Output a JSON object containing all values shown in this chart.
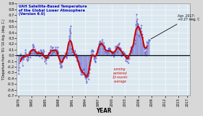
{
  "title_line1": "UAH Satellite-Based Temperature",
  "title_line2": "of the Global Lower Atmosphere",
  "title_line3": "(Version 6.0)",
  "xlabel": "YEAR",
  "ylabel": "T Departure from '81-'10 Avg. (deg. C.)",
  "ylim": [
    -0.7,
    0.9
  ],
  "yticks": [
    -0.7,
    -0.6,
    -0.5,
    -0.4,
    -0.3,
    -0.2,
    -0.1,
    0.0,
    0.1,
    0.2,
    0.3,
    0.4,
    0.5,
    0.6,
    0.7,
    0.8,
    0.9
  ],
  "xlim_start": 1978.6,
  "xlim_end": 2017.7,
  "xtick_years": [
    1979,
    1982,
    1985,
    1988,
    1991,
    1994,
    1997,
    2000,
    2003,
    2006,
    2009,
    2012,
    2015,
    2017
  ],
  "monthly_color": "#6666cc",
  "smooth_color": "#cc0000",
  "zero_line_color": "#000000",
  "title_color": "#0000bb",
  "annotation_text": "Apr. 2017:\n+0.27 deg. C",
  "legend_text": "running\ncentered\n13-month\naverage",
  "legend_color": "#cc0000",
  "bg_color": "#d8d8d8",
  "plot_bg_color": "#dce8f0",
  "grid_color": "#ffffff",
  "monthly_data": [
    -0.259,
    -0.317,
    -0.211,
    -0.129,
    -0.054,
    -0.011,
    0.003,
    0.021,
    -0.044,
    -0.073,
    -0.058,
    -0.014,
    -0.176,
    -0.071,
    -0.046,
    0.004,
    0.001,
    -0.017,
    -0.019,
    0.099,
    0.053,
    0.032,
    -0.002,
    -0.073,
    -0.095,
    -0.025,
    -0.03,
    -0.064,
    0.046,
    0.03,
    0.024,
    0.078,
    0.034,
    -0.029,
    0.082,
    0.091,
    0.033,
    0.095,
    0.081,
    0.19,
    0.177,
    0.161,
    0.148,
    0.052,
    0.079,
    0.111,
    0.037,
    0.005,
    0.075,
    0.029,
    0.046,
    0.006,
    0.026,
    0.057,
    0.068,
    0.072,
    0.007,
    -0.01,
    0.029,
    -0.012,
    0.094,
    0.084,
    0.066,
    0.064,
    -0.044,
    0.001,
    0.009,
    0.045,
    0.099,
    0.08,
    -0.023,
    -0.1,
    -0.031,
    -0.055,
    -0.139,
    -0.086,
    -0.033,
    -0.05,
    -0.035,
    -0.027,
    -0.046,
    -0.028,
    -0.022,
    0.047,
    0.044,
    0.052,
    0.099,
    0.155,
    0.095,
    0.026,
    -0.003,
    0.052,
    0.134,
    0.151,
    0.063,
    0.083,
    0.096,
    0.06,
    0.085,
    0.098,
    0.145,
    0.114,
    0.039,
    0.05,
    0.046,
    0.096,
    0.146,
    0.076,
    0.048,
    -0.001,
    -0.008,
    -0.048,
    -0.14,
    -0.201,
    -0.144,
    -0.208,
    -0.175,
    -0.185,
    -0.12,
    -0.093,
    -0.105,
    -0.045,
    -0.06,
    -0.04,
    -0.017,
    -0.004,
    0.041,
    -0.012,
    -0.022,
    -0.011,
    -0.021,
    -0.046,
    0.011,
    0.032,
    0.047,
    0.108,
    0.195,
    0.285,
    0.335,
    0.434,
    0.471,
    0.51,
    0.39,
    0.215,
    0.122,
    0.105,
    0.058,
    0.1,
    0.019,
    0.019,
    0.028,
    0.019,
    0.059,
    0.089,
    0.015,
    -0.02,
    0.031,
    0.015,
    -0.037,
    -0.094,
    -0.037,
    -0.014,
    -0.101,
    -0.169,
    -0.135,
    -0.142,
    -0.211,
    -0.218,
    -0.254,
    -0.282,
    -0.334,
    -0.296,
    -0.29,
    -0.329,
    -0.265,
    -0.249,
    -0.252,
    -0.238,
    -0.295,
    -0.335,
    -0.373,
    -0.37,
    -0.334,
    -0.405,
    -0.472,
    -0.448,
    -0.372,
    -0.313,
    -0.341,
    -0.418,
    -0.358,
    -0.309,
    -0.245,
    -0.23,
    -0.166,
    -0.09,
    -0.027,
    0.014,
    0.07,
    0.092,
    0.082,
    0.09,
    0.07,
    0.002,
    -0.025,
    -0.057,
    -0.041,
    -0.095,
    -0.114,
    -0.102,
    -0.039,
    0.021,
    0.039,
    0.062,
    0.076,
    0.064,
    0.088,
    0.12,
    0.193,
    0.217,
    0.237,
    0.25,
    0.178,
    0.208,
    0.188,
    0.21,
    0.24,
    0.274,
    0.183,
    0.178,
    0.215,
    0.122,
    0.17,
    0.12,
    0.145,
    0.08,
    0.1,
    0.059,
    0.048,
    0.072,
    0.012,
    0.048,
    0.072,
    0.098,
    0.119,
    0.13,
    0.085,
    0.12,
    0.106,
    0.09,
    0.078,
    0.003,
    0.024,
    0.059,
    0.069,
    0.049,
    0.047,
    0.001,
    -0.02,
    0.025,
    0.04,
    0.02,
    0.067,
    0.155,
    0.133,
    0.102,
    0.173,
    0.159,
    0.068,
    0.13,
    0.193,
    0.117,
    0.191,
    0.108,
    0.213,
    0.134,
    0.12,
    0.084,
    0.042,
    -0.01,
    0.018,
    0.018,
    0.08,
    0.057,
    0.017,
    0.018,
    0.046,
    0.04,
    0.028,
    0.007,
    -0.09,
    -0.051,
    -0.052,
    -0.04,
    -0.109,
    -0.058,
    -0.019,
    -0.05,
    -0.13,
    -0.047,
    -0.055,
    0.019,
    0.005,
    0.081,
    0.148,
    0.129,
    0.064,
    0.13,
    0.146,
    0.102,
    0.166,
    0.166,
    0.213,
    0.23,
    0.28,
    0.204,
    0.259,
    0.369,
    0.538,
    0.719,
    0.601,
    0.633,
    0.565,
    0.548,
    0.543,
    0.459,
    0.357,
    0.337,
    0.421,
    0.414,
    0.473,
    0.48,
    0.53,
    0.424,
    0.373,
    0.372,
    0.308,
    0.222,
    0.164,
    0.19,
    0.172,
    0.114,
    0.053,
    0.023,
    0.063,
    0.007,
    0.076,
    0.122,
    0.239,
    0.176,
    0.214,
    0.234,
    0.275,
    0.27,
    0.27
  ]
}
